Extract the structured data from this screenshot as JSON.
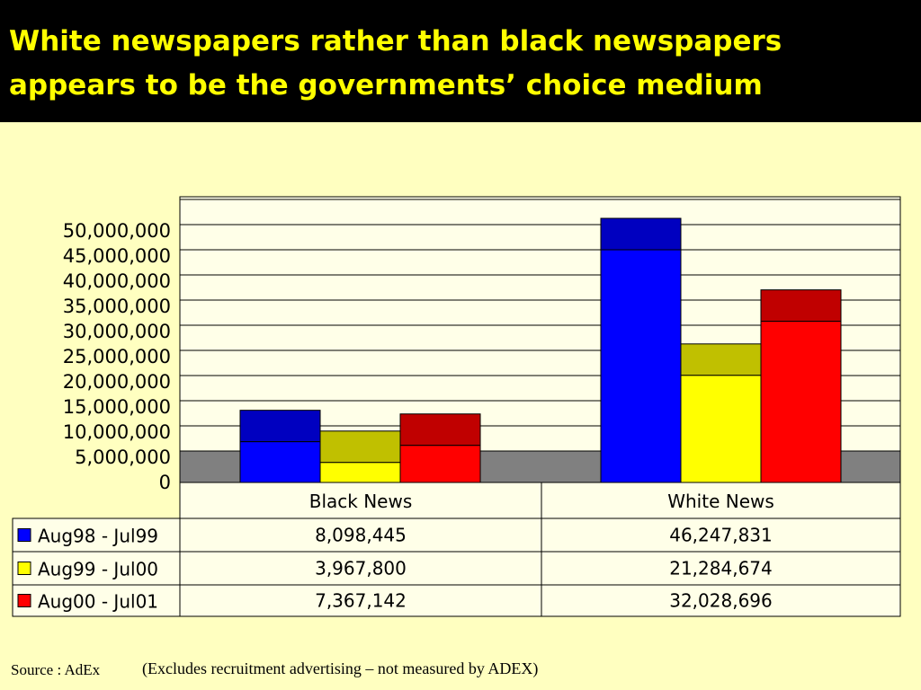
{
  "slide": {
    "title_line1": "White newspapers rather than black newspapers",
    "title_line2": "appears to be the governments’ choice medium",
    "source": "Source : AdEx",
    "note": "(Excludes recruitment advertising – not measured by ADEX)"
  },
  "colors": {
    "title_bg": "#000000",
    "title_text": "#ffff00",
    "slide_bg": "#ffffc0",
    "plot_bg": "#ffffe8",
    "floor": "#808080"
  },
  "chart_data": {
    "type": "bar",
    "style": "3d-clustered-column",
    "categories": [
      "Black News",
      "White News"
    ],
    "series": [
      {
        "name": "Aug98 - Jul99",
        "color": "#0000ff",
        "top_color": "#0000c0",
        "values": [
          8098445,
          46247831
        ]
      },
      {
        "name": "Aug99 - Jul00",
        "color": "#ffff00",
        "top_color": "#c0c000",
        "values": [
          3967800,
          21284674
        ]
      },
      {
        "name": "Aug00 - Jul01",
        "color": "#ff0000",
        "top_color": "#c00000",
        "values": [
          7367142,
          32028696
        ]
      }
    ],
    "data_table": {
      "rows": [
        [
          "8,098,445",
          "46,247,831"
        ],
        [
          "3,967,800",
          "21,284,674"
        ],
        [
          "7,367,142",
          "32,028,696"
        ]
      ]
    },
    "yticks": [
      0,
      5000000,
      10000000,
      15000000,
      20000000,
      25000000,
      30000000,
      35000000,
      40000000,
      45000000,
      50000000
    ],
    "ytick_labels": [
      "0",
      "5,000,000",
      "10,000,000",
      "15,000,000",
      "20,000,000",
      "25,000,000",
      "30,000,000",
      "35,000,000",
      "40,000,000",
      "45,000,000",
      "50,000,000"
    ],
    "ylim": [
      0,
      50000000
    ],
    "grid": true,
    "legend": "data-table"
  }
}
